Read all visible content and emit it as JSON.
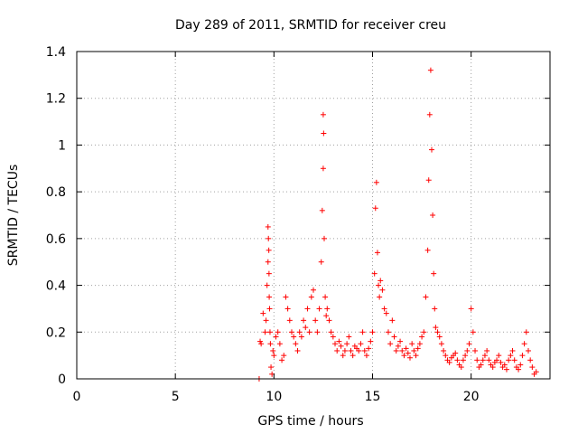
{
  "chart_data": {
    "type": "scatter",
    "title": "Day 289 of 2011, SRMTID for receiver creu",
    "xlabel": "GPS time / hours",
    "ylabel": "SRMTID / TECUs",
    "xlim": [
      0,
      24
    ],
    "ylim": [
      0,
      1.4
    ],
    "xticks": [
      "0",
      "5",
      "10",
      "15",
      "20"
    ],
    "yticks": [
      "0",
      "0.2",
      "0.4",
      "0.6",
      "0.8",
      "1",
      "1.2",
      "1.4"
    ],
    "grid": true,
    "marker": "+",
    "color": "#ff0000",
    "series": [
      {
        "x": [
          9.25,
          9.3,
          9.35,
          9.45,
          9.55,
          9.6,
          9.65,
          9.7,
          9.7,
          9.72,
          9.74,
          9.75,
          9.76,
          9.78,
          9.8,
          9.82,
          9.85,
          9.9,
          9.95,
          10.0,
          10.1,
          10.2,
          10.3,
          10.4,
          10.5,
          10.6,
          10.7,
          10.8,
          10.9,
          11.0,
          11.1,
          11.2,
          11.3,
          11.4,
          11.5,
          11.6,
          11.7,
          11.8,
          11.9,
          12.0,
          12.1,
          12.2,
          12.3,
          12.4,
          12.45,
          12.5,
          12.5,
          12.52,
          12.55,
          12.6,
          12.65,
          12.7,
          12.8,
          12.9,
          13.0,
          13.1,
          13.2,
          13.3,
          13.4,
          13.5,
          13.6,
          13.7,
          13.8,
          13.9,
          14.0,
          14.1,
          14.2,
          14.3,
          14.4,
          14.5,
          14.6,
          14.7,
          14.8,
          14.9,
          15.0,
          15.1,
          15.15,
          15.2,
          15.25,
          15.3,
          15.35,
          15.4,
          15.5,
          15.6,
          15.7,
          15.8,
          15.9,
          16.0,
          16.1,
          16.2,
          16.3,
          16.4,
          16.5,
          16.6,
          16.7,
          16.8,
          16.9,
          17.0,
          17.1,
          17.2,
          17.3,
          17.4,
          17.5,
          17.6,
          17.7,
          17.8,
          17.85,
          17.9,
          17.95,
          18.0,
          18.05,
          18.1,
          18.15,
          18.2,
          18.3,
          18.4,
          18.5,
          18.6,
          18.7,
          18.8,
          18.9,
          19.0,
          19.1,
          19.2,
          19.3,
          19.4,
          19.5,
          19.6,
          19.7,
          19.8,
          19.9,
          20.0,
          20.1,
          20.2,
          20.3,
          20.4,
          20.5,
          20.6,
          20.7,
          20.8,
          20.9,
          21.0,
          21.1,
          21.2,
          21.3,
          21.4,
          21.5,
          21.6,
          21.7,
          21.8,
          21.9,
          22.0,
          22.1,
          22.2,
          22.3,
          22.4,
          22.5,
          22.6,
          22.7,
          22.8,
          22.9,
          23.0,
          23.1,
          23.2,
          23.3
        ],
        "y": [
          0.0,
          0.16,
          0.15,
          0.28,
          0.2,
          0.25,
          0.4,
          0.5,
          0.65,
          0.6,
          0.55,
          0.45,
          0.35,
          0.3,
          0.2,
          0.15,
          0.05,
          0.02,
          0.12,
          0.1,
          0.18,
          0.2,
          0.15,
          0.08,
          0.1,
          0.35,
          0.3,
          0.25,
          0.2,
          0.18,
          0.15,
          0.12,
          0.2,
          0.18,
          0.25,
          0.22,
          0.3,
          0.2,
          0.35,
          0.38,
          0.25,
          0.2,
          0.3,
          0.5,
          0.72,
          0.9,
          1.13,
          1.05,
          0.6,
          0.35,
          0.27,
          0.3,
          0.25,
          0.2,
          0.18,
          0.15,
          0.12,
          0.16,
          0.14,
          0.1,
          0.12,
          0.15,
          0.18,
          0.12,
          0.1,
          0.14,
          0.13,
          0.12,
          0.15,
          0.2,
          0.12,
          0.1,
          0.13,
          0.16,
          0.2,
          0.45,
          0.73,
          0.84,
          0.54,
          0.4,
          0.35,
          0.42,
          0.38,
          0.3,
          0.28,
          0.2,
          0.15,
          0.25,
          0.18,
          0.12,
          0.14,
          0.16,
          0.12,
          0.1,
          0.13,
          0.11,
          0.09,
          0.15,
          0.12,
          0.1,
          0.13,
          0.15,
          0.18,
          0.2,
          0.35,
          0.55,
          0.85,
          1.13,
          1.32,
          0.98,
          0.7,
          0.45,
          0.3,
          0.22,
          0.2,
          0.18,
          0.15,
          0.12,
          0.1,
          0.08,
          0.07,
          0.09,
          0.1,
          0.11,
          0.08,
          0.06,
          0.05,
          0.08,
          0.1,
          0.12,
          0.15,
          0.3,
          0.2,
          0.12,
          0.08,
          0.05,
          0.06,
          0.08,
          0.1,
          0.12,
          0.08,
          0.06,
          0.05,
          0.07,
          0.08,
          0.1,
          0.07,
          0.05,
          0.06,
          0.04,
          0.08,
          0.1,
          0.12,
          0.08,
          0.05,
          0.04,
          0.06,
          0.1,
          0.15,
          0.2,
          0.12,
          0.08,
          0.05,
          0.02,
          0.03
        ]
      }
    ]
  }
}
